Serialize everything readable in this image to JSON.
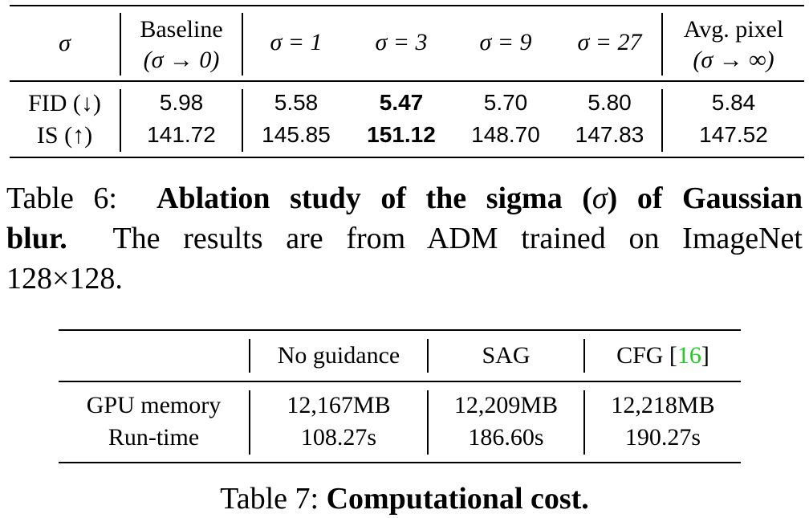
{
  "table6": {
    "header": {
      "sigma_label": "σ",
      "baseline_line1": "Baseline",
      "baseline_line2": "(σ → 0)",
      "sigma_1": "σ = 1",
      "sigma_3": "σ = 3",
      "sigma_9": "σ = 9",
      "sigma_27": "σ = 27",
      "avgpixel_line1": "Avg. pixel",
      "avgpixel_line2": "(σ → ∞)"
    },
    "rows": [
      {
        "label": "FID (↓)",
        "baseline": "5.98",
        "s1": "5.58",
        "s3": "5.47",
        "s9": "5.70",
        "s27": "5.80",
        "avg": "5.84"
      },
      {
        "label": "IS (↑)",
        "baseline": "141.72",
        "s1": "145.85",
        "s3": "151.12",
        "s9": "148.70",
        "s27": "147.83",
        "avg": "147.52"
      }
    ]
  },
  "caption6": {
    "prefix": "Table 6:",
    "bold_part1": "Ablation study of the sigma (",
    "bold_sigma": "σ",
    "bold_part2": ") of Gaussian",
    "bold_part3": "blur.",
    "rest_line2": "The results are from ADM trained on ImageNet",
    "rest_line3": "128×128."
  },
  "table7": {
    "header": {
      "no_guidance": "No guidance",
      "sag": "SAG",
      "cfg": "CFG [",
      "cfg_cite": "16",
      "cfg_close": "]"
    },
    "rows": [
      {
        "label": "GPU memory",
        "no_guidance": "12,167MB",
        "sag": "12,209MB",
        "cfg": "12,218MB"
      },
      {
        "label": "Run-time",
        "no_guidance": "108.27s",
        "sag": "186.60s",
        "cfg": "190.27s"
      }
    ]
  },
  "caption7": {
    "prefix": "Table 7:",
    "bold": "Computational cost."
  },
  "colors": {
    "citation": "#22cc22",
    "text": "#000000"
  }
}
